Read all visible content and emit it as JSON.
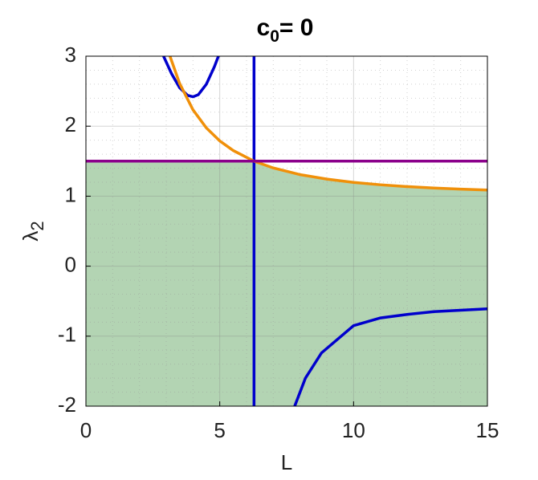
{
  "chart_data": {
    "type": "line",
    "title": {
      "base": "c",
      "subscript": "0",
      "rest": "= 0"
    },
    "xlabel": "L",
    "ylabel": {
      "base": "λ",
      "subscript": "2"
    },
    "xlim": [
      0,
      15
    ],
    "ylim": [
      -2,
      3
    ],
    "xticks": [
      0,
      5,
      10,
      15
    ],
    "yticks": [
      -2,
      -1,
      0,
      1,
      2,
      3
    ],
    "grid": true,
    "minor_grid": true,
    "area": {
      "color": "#b3d4b3",
      "x": [
        0,
        6.28,
        7,
        8,
        9,
        10,
        11,
        12,
        13,
        14,
        15
      ],
      "values": [
        1.5,
        1.5,
        1.403,
        1.308,
        1.244,
        1.197,
        1.163,
        1.137,
        1.117,
        1.101,
        1.088
      ]
    },
    "series": [
      {
        "color": "#0000cc",
        "x": [
          6.28,
          6.28
        ],
        "values": [
          -2,
          3
        ]
      },
      {
        "color": "#0000cc",
        "x": [
          2.9,
          3.2,
          3.5,
          3.8,
          4.0,
          4.2,
          4.5,
          4.8,
          4.95
        ],
        "values": [
          3,
          2.75,
          2.55,
          2.44,
          2.42,
          2.45,
          2.6,
          2.85,
          3
        ]
      },
      {
        "color": "#0000cc",
        "x": [
          7.8,
          8.2,
          8.8,
          10,
          11,
          12,
          13,
          14,
          15
        ],
        "values": [
          -2,
          -1.6,
          -1.24,
          -0.85,
          -0.74,
          -0.69,
          -0.65,
          -0.63,
          -0.61
        ]
      },
      {
        "color": "#f0900a",
        "x": [
          3.14,
          3.5,
          4,
          4.5,
          5,
          5.5,
          6.28,
          7,
          8,
          9,
          10,
          11,
          12,
          13,
          14,
          15
        ],
        "values": [
          3,
          2.611,
          2.234,
          1.975,
          1.79,
          1.653,
          1.5,
          1.403,
          1.308,
          1.244,
          1.197,
          1.163,
          1.137,
          1.117,
          1.101,
          1.088
        ]
      },
      {
        "color": "#8b008b",
        "x": [
          0,
          15
        ],
        "values": [
          1.5,
          1.5
        ]
      }
    ]
  }
}
